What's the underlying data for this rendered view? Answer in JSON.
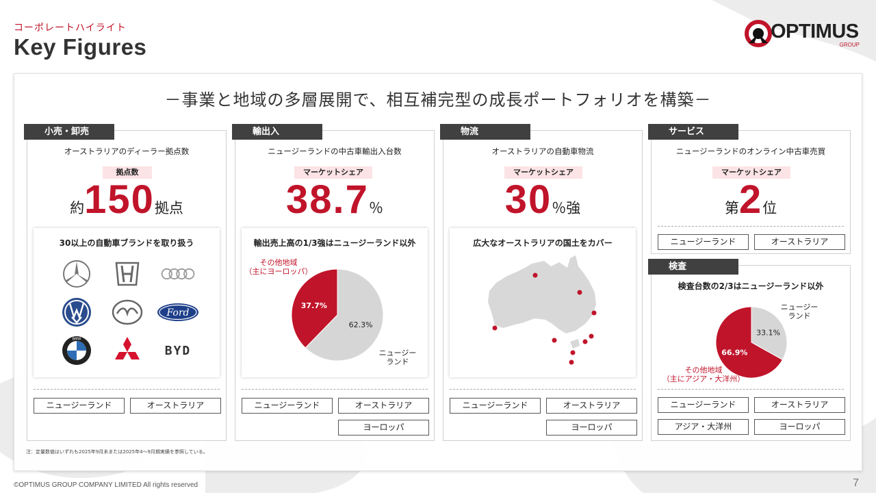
{
  "header": {
    "section_label": "コーポレートハイライト",
    "title": "Key Figures",
    "logo_text": "OPTIMUS",
    "logo_sub": "GROUP"
  },
  "headline": "－事業と地域の多層展開で、相互補完型の成長ポートフォリオを構築－",
  "sections": {
    "retail": {
      "tab": "小売・卸売",
      "description": "オーストラリアのディーラー拠点数",
      "pill": "拠点数",
      "prefix": "約",
      "value": "150",
      "suffix": "拠点",
      "inner_title": "30以上の自動車ブランドを取り扱う",
      "brands": [
        "mercedes-benz-logo",
        "honda-logo",
        "audi-logo",
        "volkswagen-logo",
        "mazda-logo",
        "ford-logo",
        "bmw-logo",
        "mitsubishi-logo",
        "byd-logo"
      ],
      "brand_text": {
        "ford": "Ford",
        "byd": "BYD",
        "bmw": "BMW"
      },
      "regions": [
        "ニュージーランド",
        "オーストラリア"
      ]
    },
    "import_export": {
      "tab": "輸出入",
      "description": "ニュージーランドの中古車輸出入台数",
      "pill": "マーケットシェア",
      "value": "38.7",
      "suffix": "％",
      "inner_title": "輸出売上高の1/3強はニュージーランド以外",
      "regions": [
        "ニュージーランド",
        "オーストラリア",
        "ヨーロッパ"
      ]
    },
    "logistics": {
      "tab": "物流",
      "description": "オーストラリアの自動車物流",
      "pill": "マーケットシェア",
      "value": "30",
      "suffix": "％強",
      "inner_title": "広大なオーストラリアの国土をカバー",
      "regions": [
        "ニュージーランド",
        "オーストラリア",
        "ヨーロッパ"
      ]
    },
    "services": {
      "tab": "サービス",
      "description": "ニュージーランドのオンライン中古車売買",
      "pill": "マーケットシェア",
      "prefix": "第",
      "value": "2",
      "suffix": "位",
      "regions": [
        "ニュージーランド",
        "オーストラリア"
      ]
    },
    "inspection": {
      "tab": "検査",
      "inner_title": "検査台数の2/3はニュージーランド以外",
      "regions": [
        "ニュージーランド",
        "オーストラリア",
        "アジア・大洋州",
        "ヨーロッパ"
      ]
    }
  },
  "chart_data": [
    {
      "type": "pie",
      "title": "輸出売上高の1/3強はニュージーランド以外",
      "slices": [
        {
          "label": "その他地域（主にヨーロッパ）",
          "value": 37.7,
          "display": "37.7%",
          "color": "#c0142a"
        },
        {
          "label": "ニュージーランド",
          "value": 62.3,
          "display": "62.3%",
          "color": "#d6d6d6"
        }
      ]
    },
    {
      "type": "pie",
      "title": "検査台数の2/3はニュージーランド以外",
      "slices": [
        {
          "label": "その他地域（主にアジア・大洋州）",
          "value": 66.9,
          "display": "66.9%",
          "color": "#c0142a"
        },
        {
          "label": "ニュージーランド",
          "value": 33.1,
          "display": "33.1%",
          "color": "#d6d6d6"
        }
      ]
    }
  ],
  "labels": {
    "pie1_other_line1": "その他地域",
    "pie1_other_line2": "（主にヨーロッパ）",
    "pie1_nz_line1": "ニュージー",
    "pie1_nz_line2": "ランド",
    "pie2_other_line1": "その他地域",
    "pie2_other_line2": "（主にアジア・大洋州）",
    "pie2_nz_line1": "ニュージー",
    "pie2_nz_line2": "ランド"
  },
  "footnote": "注：定量数値はいずれも2025年9月末または2025年4～9月期実績を参照している。",
  "copyright": "©OPTIMUS GROUP COMPANY LIMITED All rights reserved",
  "page_number": "7",
  "colors": {
    "accent": "#c0142a",
    "tab_bg": "#404040",
    "pill_bg": "#fbe3e6",
    "neutral": "#d6d6d6"
  }
}
